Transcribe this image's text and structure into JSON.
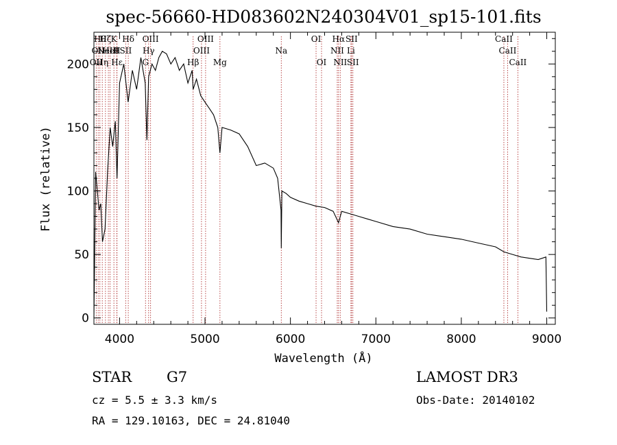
{
  "chart_data": {
    "type": "line",
    "title": "spec-56660-HD083602N240304V01_sp15-101.fits",
    "xlabel": "Wavelength (Å)",
    "ylabel": "Flux (relative)",
    "xlim": [
      3700,
      9100
    ],
    "ylim": [
      -5,
      225
    ],
    "xticks": [
      4000,
      5000,
      6000,
      7000,
      8000,
      9000
    ],
    "yticks": [
      0,
      50,
      100,
      150,
      200
    ],
    "grid": false,
    "series": [
      {
        "color": "#000000",
        "x": [
          3700,
          3720,
          3740,
          3760,
          3780,
          3800,
          3830,
          3860,
          3890,
          3920,
          3950,
          3970,
          4000,
          4050,
          4100,
          4150,
          4200,
          4250,
          4300,
          4320,
          4340,
          4380,
          4420,
          4460,
          4500,
          4550,
          4600,
          4650,
          4700,
          4750,
          4800,
          4850,
          4861,
          4900,
          4950,
          5000,
          5050,
          5100,
          5150,
          5175,
          5200,
          5300,
          5400,
          5500,
          5600,
          5700,
          5800,
          5850,
          5890,
          5893,
          5900,
          5950,
          6000,
          6100,
          6200,
          6300,
          6400,
          6500,
          6563,
          6600,
          6700,
          6800,
          6900,
          7000,
          7200,
          7400,
          7600,
          7800,
          8000,
          8200,
          8400,
          8500,
          8600,
          8700,
          8800,
          8900,
          8990,
          9000
        ],
        "y": [
          0,
          115,
          100,
          85,
          90,
          60,
          70,
          115,
          150,
          135,
          155,
          110,
          185,
          200,
          170,
          195,
          180,
          205,
          185,
          140,
          190,
          200,
          195,
          205,
          210,
          208,
          200,
          205,
          195,
          200,
          185,
          195,
          180,
          188,
          175,
          170,
          165,
          160,
          150,
          130,
          150,
          148,
          145,
          135,
          120,
          122,
          118,
          110,
          85,
          55,
          100,
          98,
          95,
          92,
          90,
          88,
          87,
          84,
          75,
          84,
          82,
          80,
          78,
          76,
          72,
          70,
          66,
          64,
          62,
          59,
          56,
          52,
          50,
          48,
          47,
          46,
          48,
          5
        ]
      }
    ],
    "line_markers": [
      {
        "x": 3727,
        "label": "OII",
        "row": 2
      },
      {
        "x": 3750,
        "label": "OII",
        "row": 1
      },
      {
        "x": 3770,
        "label": "Hθ",
        "row": 0
      },
      {
        "x": 3798,
        "label": "Hη",
        "row": 2
      },
      {
        "x": 3835,
        "label": "Hζ",
        "row": 0
      },
      {
        "x": 3869,
        "label": "NeIII",
        "row": 1
      },
      {
        "x": 3889,
        "label": "HeI",
        "row": 1
      },
      {
        "x": 3934,
        "label": "K",
        "row": 0
      },
      {
        "x": 3968,
        "label": "H",
        "row": 1
      },
      {
        "x": 3970,
        "label": "Hε",
        "row": 2
      },
      {
        "x": 4072,
        "label": "SII",
        "row": 1
      },
      {
        "x": 4102,
        "label": "Hδ",
        "row": 0
      },
      {
        "x": 4304,
        "label": "G",
        "row": 2
      },
      {
        "x": 4340,
        "label": "Hγ",
        "row": 1
      },
      {
        "x": 4363,
        "label": "OIII",
        "row": 0
      },
      {
        "x": 4861,
        "label": "Hβ",
        "row": 2
      },
      {
        "x": 4959,
        "label": "OIII",
        "row": 1
      },
      {
        "x": 5007,
        "label": "OIII",
        "row": 0
      },
      {
        "x": 5175,
        "label": "Mg",
        "row": 2
      },
      {
        "x": 5893,
        "label": "Na",
        "row": 1
      },
      {
        "x": 6300,
        "label": "OI",
        "row": 0
      },
      {
        "x": 6364,
        "label": "OI",
        "row": 2
      },
      {
        "x": 6548,
        "label": "NII",
        "row": 1
      },
      {
        "x": 6563,
        "label": "Hα",
        "row": 0
      },
      {
        "x": 6583,
        "label": "NII",
        "row": 2
      },
      {
        "x": 6708,
        "label": "Li",
        "row": 1
      },
      {
        "x": 6716,
        "label": "SII",
        "row": 0
      },
      {
        "x": 6731,
        "label": "SII",
        "row": 2
      },
      {
        "x": 8498,
        "label": "CaII",
        "row": 0
      },
      {
        "x": 8542,
        "label": "CaII",
        "row": 1
      },
      {
        "x": 8662,
        "label": "CaII",
        "row": 2
      }
    ],
    "marker_color": "#b03030"
  },
  "info": {
    "class": "STAR",
    "subclass": "G7",
    "survey": "LAMOST DR3",
    "cz": "cz = 5.5 ± 3.3 km/s",
    "obs_date": "Obs-Date: 20140102",
    "coords": "RA = 129.10163, DEC =  24.81040"
  }
}
